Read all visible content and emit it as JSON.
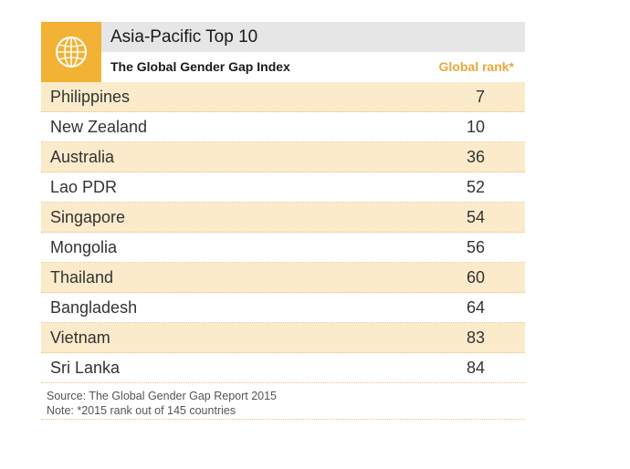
{
  "header": {
    "title": "Asia-Pacific Top 10",
    "subtitle": "The Global Gender Gap Index",
    "column_label": "Global rank*",
    "icon": "globe-icon",
    "accent": "#f2b233"
  },
  "chart_data": {
    "type": "table",
    "title": "Asia-Pacific Top 10",
    "subtitle": "The Global Gender Gap Index",
    "columns": [
      "",
      "Global rank*"
    ],
    "rows": [
      {
        "country": "Philippines",
        "rank": "7"
      },
      {
        "country": "New Zealand",
        "rank": "10"
      },
      {
        "country": "Australia",
        "rank": "36"
      },
      {
        "country": "Lao PDR",
        "rank": "52"
      },
      {
        "country": "Singapore",
        "rank": "54"
      },
      {
        "country": "Mongolia",
        "rank": "56"
      },
      {
        "country": "Thailand",
        "rank": "60"
      },
      {
        "country": "Bangladesh",
        "rank": "64"
      },
      {
        "country": "Vietnam",
        "rank": "83"
      },
      {
        "country": "Sri Lanka",
        "rank": "84"
      }
    ]
  },
  "footer": {
    "source": "Source: The Global Gender Gap Report 2015",
    "note": "Note: *2015 rank out of 145 countries"
  }
}
